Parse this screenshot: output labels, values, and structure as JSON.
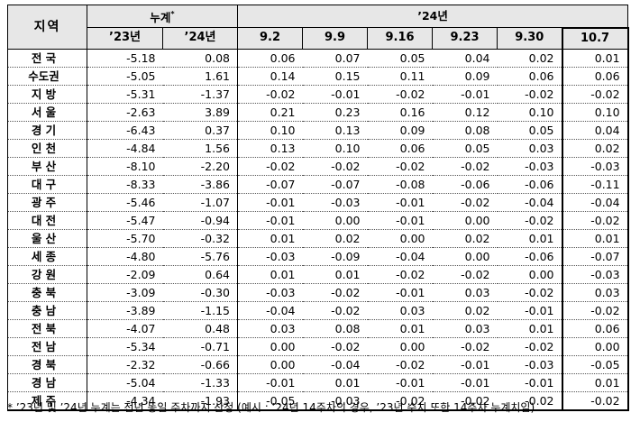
{
  "header": {
    "region": "지역",
    "cumulative": "누계",
    "cumulative_mark": "*",
    "year24": "’24년",
    "cols": [
      "’23년",
      "’24년",
      "9.2",
      "9.9",
      "9.16",
      "9.23",
      "9.30",
      "10.7"
    ]
  },
  "rows": [
    {
      "region": "전  국",
      "values": [
        "-5.18",
        "0.08",
        "0.06",
        "0.07",
        "0.05",
        "0.04",
        "0.02",
        "0.01"
      ]
    },
    {
      "region": "수도권",
      "values": [
        "-5.05",
        "1.61",
        "0.14",
        "0.15",
        "0.11",
        "0.09",
        "0.06",
        "0.06"
      ]
    },
    {
      "region": "지  방",
      "values": [
        "-5.31",
        "-1.37",
        "-0.02",
        "-0.01",
        "-0.02",
        "-0.01",
        "-0.02",
        "-0.02"
      ]
    },
    {
      "region": "서  울",
      "values": [
        "-2.63",
        "3.89",
        "0.21",
        "0.23",
        "0.16",
        "0.12",
        "0.10",
        "0.10"
      ]
    },
    {
      "region": "경  기",
      "values": [
        "-6.43",
        "0.37",
        "0.10",
        "0.13",
        "0.09",
        "0.08",
        "0.05",
        "0.04"
      ]
    },
    {
      "region": "인  천",
      "values": [
        "-4.84",
        "1.56",
        "0.13",
        "0.10",
        "0.06",
        "0.05",
        "0.03",
        "0.02"
      ]
    },
    {
      "region": "부  산",
      "values": [
        "-8.10",
        "-2.20",
        "-0.02",
        "-0.02",
        "-0.02",
        "-0.02",
        "-0.03",
        "-0.03"
      ]
    },
    {
      "region": "대  구",
      "values": [
        "-8.33",
        "-3.86",
        "-0.07",
        "-0.07",
        "-0.08",
        "-0.06",
        "-0.06",
        "-0.11"
      ]
    },
    {
      "region": "광  주",
      "values": [
        "-5.46",
        "-1.07",
        "-0.01",
        "-0.03",
        "-0.01",
        "-0.02",
        "-0.04",
        "-0.04"
      ]
    },
    {
      "region": "대  전",
      "values": [
        "-5.47",
        "-0.94",
        "-0.01",
        "0.00",
        "-0.01",
        "0.00",
        "-0.02",
        "-0.02"
      ]
    },
    {
      "region": "울  산",
      "values": [
        "-5.70",
        "-0.32",
        "0.01",
        "0.02",
        "0.00",
        "0.02",
        "0.01",
        "0.01"
      ]
    },
    {
      "region": "세  종",
      "values": [
        "-4.80",
        "-5.76",
        "-0.03",
        "-0.09",
        "-0.04",
        "0.00",
        "-0.06",
        "-0.07"
      ]
    },
    {
      "region": "강  원",
      "values": [
        "-2.09",
        "0.64",
        "0.01",
        "0.01",
        "-0.02",
        "-0.02",
        "0.00",
        "-0.03"
      ]
    },
    {
      "region": "충  북",
      "values": [
        "-3.09",
        "-0.30",
        "-0.03",
        "-0.02",
        "-0.01",
        "0.03",
        "-0.02",
        "0.03"
      ]
    },
    {
      "region": "충  남",
      "values": [
        "-3.89",
        "-1.15",
        "-0.04",
        "-0.02",
        "0.03",
        "0.02",
        "-0.01",
        "-0.02"
      ]
    },
    {
      "region": "전  북",
      "values": [
        "-4.07",
        "0.48",
        "0.03",
        "0.08",
        "0.01",
        "0.03",
        "0.01",
        "0.06"
      ]
    },
    {
      "region": "전  남",
      "values": [
        "-5.34",
        "-0.71",
        "0.00",
        "-0.02",
        "0.00",
        "-0.02",
        "-0.02",
        "0.00"
      ]
    },
    {
      "region": "경  북",
      "values": [
        "-2.32",
        "-0.66",
        "0.00",
        "-0.04",
        "-0.02",
        "-0.01",
        "-0.03",
        "-0.05"
      ]
    },
    {
      "region": "경  남",
      "values": [
        "-5.04",
        "-1.33",
        "-0.01",
        "0.01",
        "-0.01",
        "-0.01",
        "-0.01",
        "0.01"
      ]
    },
    {
      "region": "제  주",
      "values": [
        "-4.34",
        "-1.93",
        "-0.05",
        "-0.03",
        "-0.02",
        "-0.02",
        "-0.02",
        "-0.02"
      ]
    }
  ],
  "footnote": "* ’23년 및 ’24년 누계는 전년 동일 주차까지 산정 (예시 : ’24년 14주차의 경우, ’23년 수치 또한 14주차 누계치임)"
}
